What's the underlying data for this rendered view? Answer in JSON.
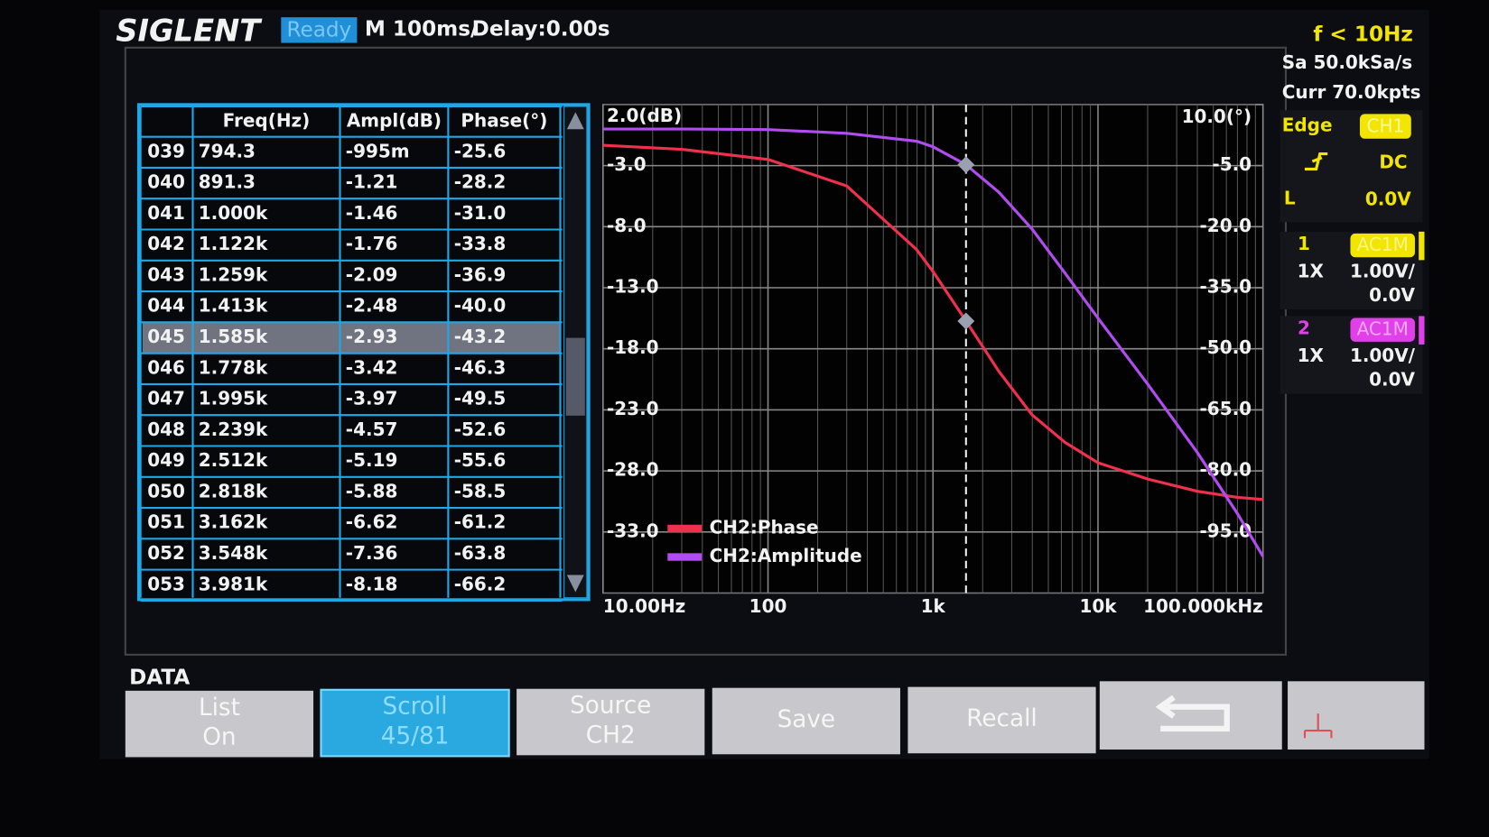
{
  "header": {
    "brand": "SIGLENT",
    "status": "Ready",
    "timebase": "M 100ms/",
    "delay": "Delay:0.00s",
    "trigger_freq": "f < 10Hz"
  },
  "side": {
    "sample_rate": "Sa 50.0kSa/s",
    "memory": "Curr 70.0kpts",
    "trigger": {
      "type": "Edge",
      "source": "CH1",
      "coupling": "DC",
      "level_label": "L",
      "level": "0.0V"
    },
    "channels": [
      {
        "number": "1",
        "coupling": "AC1M",
        "probe": "1X",
        "scale": "1.00V/",
        "offset": "0.0V",
        "color": "#f2e600"
      },
      {
        "number": "2",
        "coupling": "AC1M",
        "probe": "1X",
        "scale": "1.00V/",
        "offset": "0.0V",
        "color": "#e040e8"
      }
    ]
  },
  "table": {
    "headers": [
      "Freq(Hz)",
      "Ampl(dB)",
      "Phase(°)"
    ],
    "rows": [
      [
        "039",
        "794.3",
        "-995m",
        "-25.6"
      ],
      [
        "040",
        "891.3",
        "-1.21",
        "-28.2"
      ],
      [
        "041",
        "1.000k",
        "-1.46",
        "-31.0"
      ],
      [
        "042",
        "1.122k",
        "-1.76",
        "-33.8"
      ],
      [
        "043",
        "1.259k",
        "-2.09",
        "-36.9"
      ],
      [
        "044",
        "1.413k",
        "-2.48",
        "-40.0"
      ],
      [
        "045",
        "1.585k",
        "-2.93",
        "-43.2"
      ],
      [
        "046",
        "1.778k",
        "-3.42",
        "-46.3"
      ],
      [
        "047",
        "1.995k",
        "-3.97",
        "-49.5"
      ],
      [
        "048",
        "2.239k",
        "-4.57",
        "-52.6"
      ],
      [
        "049",
        "2.512k",
        "-5.19",
        "-55.6"
      ],
      [
        "050",
        "2.818k",
        "-5.88",
        "-58.5"
      ],
      [
        "051",
        "3.162k",
        "-6.62",
        "-61.2"
      ],
      [
        "052",
        "3.548k",
        "-7.36",
        "-63.8"
      ],
      [
        "053",
        "3.981k",
        "-8.18",
        "-66.2"
      ]
    ],
    "selected_row": 6
  },
  "menu": {
    "title": "DATA",
    "buttons": [
      {
        "lines": [
          "List",
          "On"
        ]
      },
      {
        "lines": [
          "Scroll",
          "45/81"
        ],
        "active": true
      },
      {
        "lines": [
          "Source",
          "CH2"
        ]
      },
      {
        "lines": [
          "Save"
        ]
      },
      {
        "lines": [
          "Recall"
        ]
      }
    ]
  },
  "chart_data": {
    "type": "line",
    "log_x": true,
    "grid": true,
    "x": [
      10,
      30,
      100,
      300,
      794.3,
      1000,
      1585,
      2512,
      3981,
      6310,
      10000,
      20000,
      40000,
      70000,
      100000
    ],
    "xlim": [
      10,
      100000
    ],
    "xticks": [
      {
        "value": 10,
        "label": "10.00Hz"
      },
      100,
      {
        "value": 1000,
        "label": "1k"
      },
      {
        "value": 10000,
        "label": "10k"
      },
      {
        "value": 100000,
        "label": "100.000kHz"
      }
    ],
    "ylim": [
      -38,
      2
    ],
    "yticks": [
      {
        "value": 2,
        "label": "2.0(dB)"
      },
      {
        "value": -3,
        "label": "-3.0"
      },
      {
        "value": -8,
        "label": "-8.0"
      },
      {
        "value": -13,
        "label": "-13.0"
      },
      {
        "value": -18,
        "label": "-18.0"
      },
      {
        "value": -23,
        "label": "-23.0"
      },
      {
        "value": -28,
        "label": "-28.0"
      },
      {
        "value": -33,
        "label": "-33.0"
      }
    ],
    "y2lim": [
      -110,
      10
    ],
    "y2ticks": [
      {
        "value": 10,
        "label": "10.0(°)"
      },
      {
        "value": -5,
        "label": "-5.0"
      },
      {
        "value": -20,
        "label": "-20.0"
      },
      {
        "value": -35,
        "label": "-35.0"
      },
      {
        "value": -50,
        "label": "-50.0"
      },
      {
        "value": -65,
        "label": "-65.0"
      },
      {
        "value": -80,
        "label": "-80.0"
      },
      {
        "value": -95,
        "label": "-95.0"
      }
    ],
    "cursor_x": 1585,
    "series": [
      {
        "name": "CH2:Phase",
        "color": "#f0304c",
        "axis": "y2",
        "values": [
          0,
          -1,
          -3.5,
          -10,
          -25.6,
          -31.0,
          -43.2,
          -55.6,
          -66.2,
          -73,
          -78,
          -82,
          -85,
          -86.5,
          -87
        ]
      },
      {
        "name": "CH2:Amplitude",
        "color": "#b04cf0",
        "values": [
          0,
          0,
          -0.05,
          -0.35,
          -0.995,
          -1.46,
          -2.93,
          -5.19,
          -8.18,
          -11.8,
          -15.5,
          -20.9,
          -26.5,
          -31.5,
          -35
        ]
      }
    ]
  }
}
